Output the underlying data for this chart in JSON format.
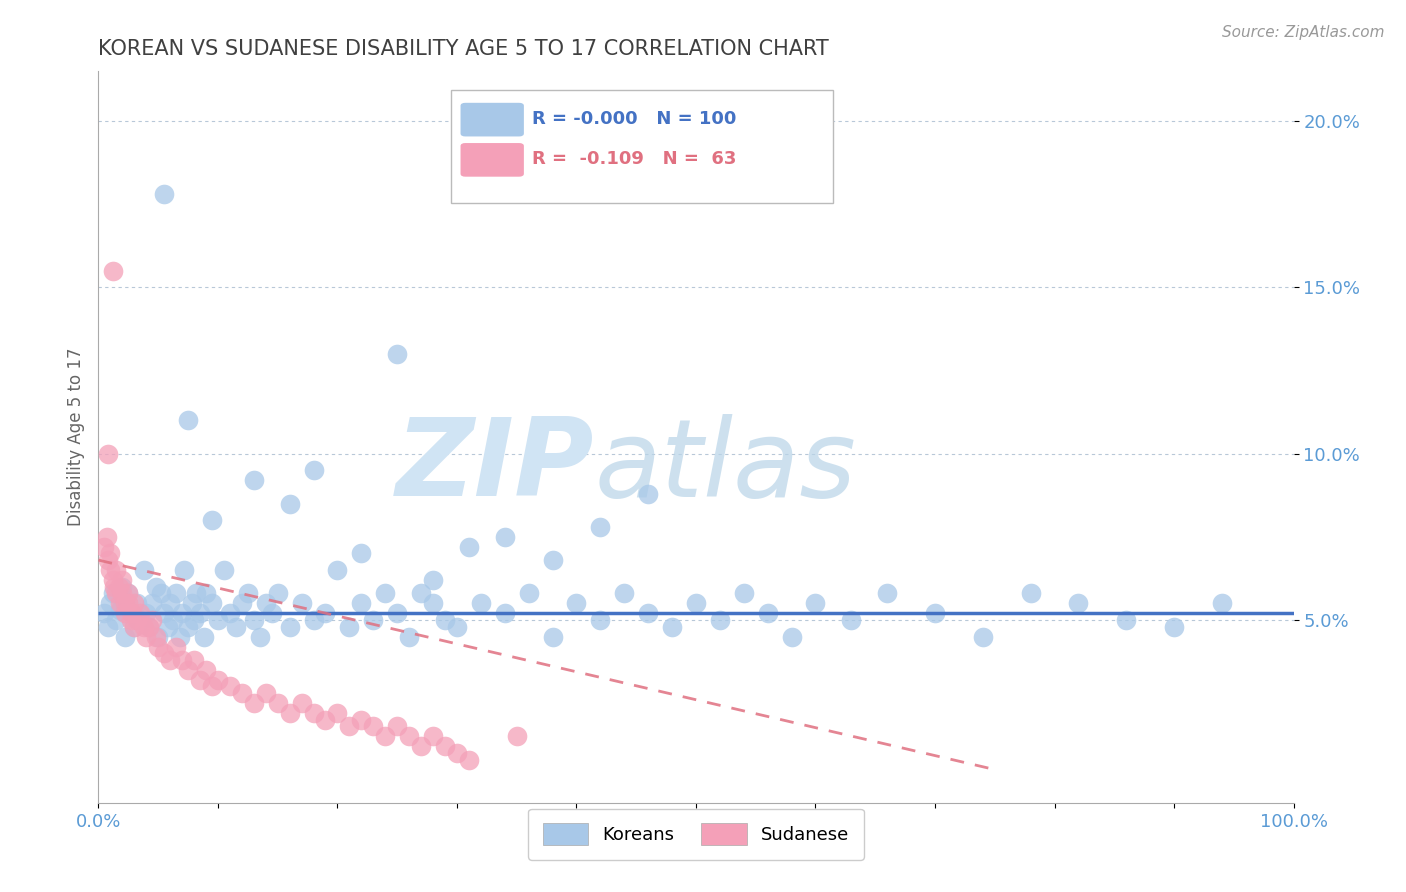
{
  "title": "KOREAN VS SUDANESE DISABILITY AGE 5 TO 17 CORRELATION CHART",
  "source_text": "Source: ZipAtlas.com",
  "ylabel": "Disability Age 5 to 17",
  "xlim": [
    0.0,
    1.0
  ],
  "ylim": [
    -0.005,
    0.215
  ],
  "yticks": [
    0.05,
    0.1,
    0.15,
    0.2
  ],
  "ytick_labels": [
    "5.0%",
    "10.0%",
    "15.0%",
    "20.0%"
  ],
  "xticks": [
    0.0,
    0.1,
    0.2,
    0.3,
    0.4,
    0.5,
    0.6,
    0.7,
    0.8,
    0.9,
    1.0
  ],
  "xtick_labels": [
    "0.0%",
    "",
    "",
    "",
    "",
    "",
    "",
    "",
    "",
    "",
    "100.0%"
  ],
  "korean_R": "-0.000",
  "korean_N": "100",
  "sudanese_R": "-0.109",
  "sudanese_N": "63",
  "korean_color": "#a8c8e8",
  "sudanese_color": "#f4a0b8",
  "korean_line_color": "#4472c4",
  "sudanese_line_color": "#e07080",
  "watermark_zip": "ZIP",
  "watermark_atlas": "atlas",
  "watermark_color": "#d0e4f4",
  "title_color": "#404040",
  "axis_label_color": "#5b9bd5",
  "background_color": "#ffffff",
  "grid_color": "#b8c8d8",
  "legend_box_color": "#ddeeff",
  "korean_line_y": 0.052,
  "sudanese_line_x0": 0.0,
  "sudanese_line_y0": 0.068,
  "sudanese_line_x1": 0.75,
  "sudanese_line_y1": 0.005,
  "korean_scatter_x": [
    0.005,
    0.008,
    0.01,
    0.012,
    0.015,
    0.018,
    0.02,
    0.022,
    0.025,
    0.028,
    0.03,
    0.032,
    0.035,
    0.038,
    0.04,
    0.042,
    0.045,
    0.048,
    0.05,
    0.052,
    0.055,
    0.058,
    0.06,
    0.062,
    0.065,
    0.068,
    0.07,
    0.072,
    0.075,
    0.078,
    0.08,
    0.082,
    0.085,
    0.088,
    0.09,
    0.095,
    0.1,
    0.105,
    0.11,
    0.115,
    0.12,
    0.125,
    0.13,
    0.135,
    0.14,
    0.145,
    0.15,
    0.16,
    0.17,
    0.18,
    0.19,
    0.2,
    0.21,
    0.22,
    0.23,
    0.24,
    0.25,
    0.26,
    0.27,
    0.28,
    0.29,
    0.3,
    0.32,
    0.34,
    0.36,
    0.38,
    0.4,
    0.42,
    0.44,
    0.46,
    0.48,
    0.5,
    0.52,
    0.54,
    0.56,
    0.58,
    0.6,
    0.63,
    0.66,
    0.7,
    0.74,
    0.78,
    0.82,
    0.86,
    0.9,
    0.94,
    0.34,
    0.46,
    0.25,
    0.18,
    0.42,
    0.38,
    0.31,
    0.28,
    0.22,
    0.16,
    0.13,
    0.095,
    0.075,
    0.055
  ],
  "korean_scatter_y": [
    0.052,
    0.048,
    0.055,
    0.058,
    0.05,
    0.053,
    0.06,
    0.045,
    0.058,
    0.052,
    0.048,
    0.055,
    0.05,
    0.065,
    0.052,
    0.048,
    0.055,
    0.06,
    0.045,
    0.058,
    0.052,
    0.048,
    0.055,
    0.05,
    0.058,
    0.045,
    0.052,
    0.065,
    0.048,
    0.055,
    0.05,
    0.058,
    0.052,
    0.045,
    0.058,
    0.055,
    0.05,
    0.065,
    0.052,
    0.048,
    0.055,
    0.058,
    0.05,
    0.045,
    0.055,
    0.052,
    0.058,
    0.048,
    0.055,
    0.05,
    0.052,
    0.065,
    0.048,
    0.055,
    0.05,
    0.058,
    0.052,
    0.045,
    0.058,
    0.055,
    0.05,
    0.048,
    0.055,
    0.052,
    0.058,
    0.045,
    0.055,
    0.05,
    0.058,
    0.052,
    0.048,
    0.055,
    0.05,
    0.058,
    0.052,
    0.045,
    0.055,
    0.05,
    0.058,
    0.052,
    0.045,
    0.058,
    0.055,
    0.05,
    0.048,
    0.055,
    0.075,
    0.088,
    0.13,
    0.095,
    0.078,
    0.068,
    0.072,
    0.062,
    0.07,
    0.085,
    0.092,
    0.08,
    0.11,
    0.178
  ],
  "sudanese_scatter_x": [
    0.005,
    0.007,
    0.008,
    0.01,
    0.01,
    0.012,
    0.013,
    0.015,
    0.015,
    0.017,
    0.018,
    0.02,
    0.02,
    0.022,
    0.022,
    0.025,
    0.025,
    0.027,
    0.028,
    0.03,
    0.03,
    0.032,
    0.035,
    0.038,
    0.04,
    0.042,
    0.045,
    0.048,
    0.05,
    0.055,
    0.06,
    0.065,
    0.07,
    0.075,
    0.08,
    0.085,
    0.09,
    0.095,
    0.1,
    0.11,
    0.12,
    0.13,
    0.14,
    0.15,
    0.16,
    0.17,
    0.18,
    0.19,
    0.2,
    0.21,
    0.22,
    0.23,
    0.24,
    0.25,
    0.26,
    0.27,
    0.28,
    0.29,
    0.3,
    0.31,
    0.35,
    0.008,
    0.012
  ],
  "sudanese_scatter_y": [
    0.072,
    0.075,
    0.068,
    0.065,
    0.07,
    0.062,
    0.06,
    0.065,
    0.058,
    0.06,
    0.055,
    0.058,
    0.062,
    0.055,
    0.052,
    0.058,
    0.055,
    0.05,
    0.052,
    0.048,
    0.055,
    0.05,
    0.052,
    0.048,
    0.045,
    0.048,
    0.05,
    0.045,
    0.042,
    0.04,
    0.038,
    0.042,
    0.038,
    0.035,
    0.038,
    0.032,
    0.035,
    0.03,
    0.032,
    0.03,
    0.028,
    0.025,
    0.028,
    0.025,
    0.022,
    0.025,
    0.022,
    0.02,
    0.022,
    0.018,
    0.02,
    0.018,
    0.015,
    0.018,
    0.015,
    0.012,
    0.015,
    0.012,
    0.01,
    0.008,
    0.015,
    0.1,
    0.155
  ]
}
